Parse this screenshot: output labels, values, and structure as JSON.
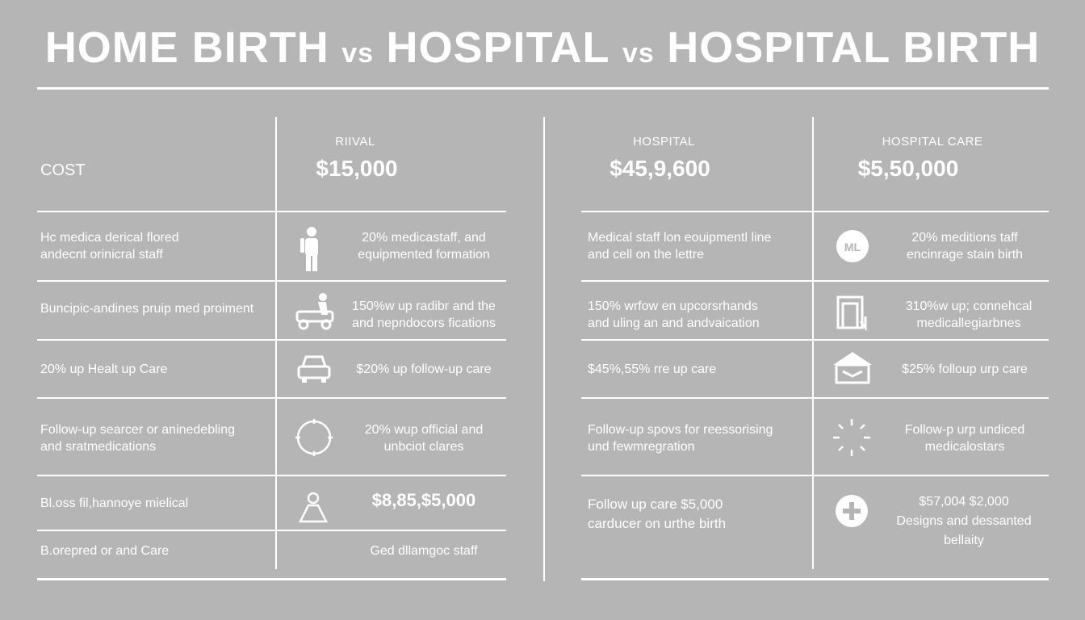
{
  "title": {
    "part1": "HOME BIRTH",
    "vs1": "vs",
    "part2": "HOSPITAL",
    "vs2": "vs",
    "part3": "HOSPITAL BIRTH"
  },
  "left_table": {
    "cost_label": "COST",
    "col_header": "RIIVAL",
    "col_price": "$15,000",
    "rows": [
      {
        "label": "Hc medica derical flored\nandecnt orinicral staff",
        "icon": "person-icon",
        "value": "20% medicastaff, and\nequipmented formation"
      },
      {
        "label": "Buncipic-andines pruip med proiment",
        "icon": "wheelchair-vehicle-icon",
        "value": "150%w up radibr and the\nand nepndocors fications"
      },
      {
        "label": "20% up Healt up Care",
        "icon": "car-icon",
        "value": "$20% up follow-up care"
      },
      {
        "label": "Follow-up searcer or aninedebling\nand sratmedications",
        "icon": "circle-target-icon",
        "value": "20% wup official and\nunbciot clares"
      },
      {
        "label": "Bl.oss fil,hannoye mielical",
        "icon": "triangle-person-icon",
        "value": "$8,85,$5,000"
      },
      {
        "label": "B.orepred or and Care",
        "icon": "",
        "value": "Ged dllamgoc staff"
      }
    ]
  },
  "right_table": {
    "col1_header": "HOSPITAL",
    "col1_price": "$45,9,600",
    "col2_header": "HOSPITAL CARE",
    "col2_price": "$5,50,000",
    "rows": [
      {
        "label": "Medical staff lon eouipmentl line\nand cell on the lettre",
        "icon": "badge-icon",
        "value": "20% meditions taff\nencinrage stain birth"
      },
      {
        "label": "150% wrfow en upcorsrhands\nand uling an and andvaication",
        "icon": "building-icon",
        "value": "310%w up; connehcal\nmedicallegiarbnes"
      },
      {
        "label": "$45%,55% rre up care",
        "icon": "house-icon",
        "value": "$25% folloup urp care"
      },
      {
        "label": "Follow-up spovs for reessorising\nund fewmregration",
        "icon": "sparkle-icon",
        "value": "Follow-p urp undiced\nmedicalostars"
      },
      {
        "label": "Follow up care $5,000\ncarducer on urthe birth",
        "icon": "plus-icon",
        "value": "$57,004 $2,000\nDesigns and dessanted\nbellaity"
      }
    ]
  }
}
